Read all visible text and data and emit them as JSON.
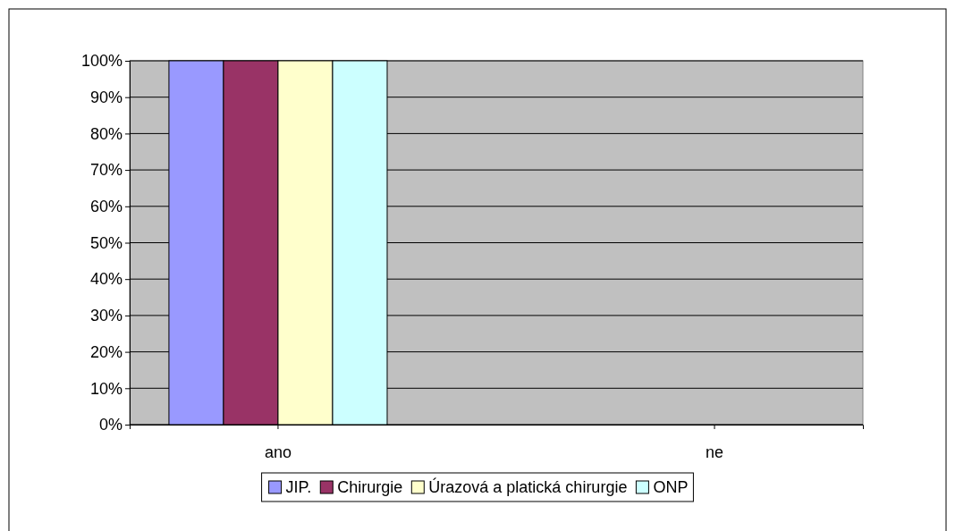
{
  "chart_data": {
    "type": "bar",
    "categories": [
      "ano",
      "ne"
    ],
    "series": [
      {
        "name": "JIP.",
        "color": "#9999ff",
        "values": [
          100,
          0
        ]
      },
      {
        "name": "Chirurgie",
        "color": "#993366",
        "values": [
          100,
          0
        ]
      },
      {
        "name": "Úrazová a platická chirurgie",
        "color": "#ffffcc",
        "values": [
          100,
          0
        ]
      },
      {
        "name": "ONP",
        "color": "#ccffff",
        "values": [
          100,
          0
        ]
      }
    ],
    "ylim": [
      0,
      100
    ],
    "yticks": [
      {
        "value": 0,
        "label": "0%"
      },
      {
        "value": 10,
        "label": "10%"
      },
      {
        "value": 20,
        "label": "20%"
      },
      {
        "value": 30,
        "label": "30%"
      },
      {
        "value": 40,
        "label": "40%"
      },
      {
        "value": 50,
        "label": "50%"
      },
      {
        "value": 60,
        "label": "60%"
      },
      {
        "value": 70,
        "label": "70%"
      },
      {
        "value": 80,
        "label": "80%"
      },
      {
        "value": 90,
        "label": "90%"
      },
      {
        "value": 100,
        "label": "100%"
      }
    ],
    "grid": "y",
    "legend": "bottom"
  }
}
